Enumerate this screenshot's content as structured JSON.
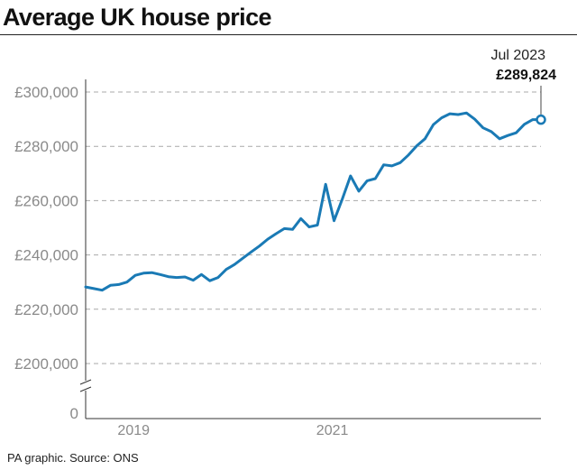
{
  "title": "Average UK house price",
  "source": "PA graphic. Source: ONS",
  "colors": {
    "line": "#1a7ab5",
    "grid": "#a9a9a9",
    "axis": "#333333",
    "tick_text": "#8a8a8a"
  },
  "chart_data": {
    "type": "line",
    "title": "Average UK house price",
    "xlabel": "",
    "ylabel": "",
    "grid": true,
    "y_axis_break": true,
    "xlim": [
      2018.917,
      2023.5
    ],
    "ylim": [
      0,
      300000
    ],
    "y_ticks": [
      0,
      200000,
      220000,
      240000,
      260000,
      280000,
      300000
    ],
    "y_tick_labels": [
      "0",
      "£200,000",
      "£220,000",
      "£240,000",
      "£260,000",
      "£280,000",
      "£300,000"
    ],
    "x_ticks": [
      2019.4,
      2021.4
    ],
    "x_tick_labels": [
      "2019",
      "2021"
    ],
    "series": [
      {
        "name": "Average UK house price",
        "x": [
          2018.917,
          2019.0,
          2019.083,
          2019.167,
          2019.25,
          2019.333,
          2019.417,
          2019.5,
          2019.583,
          2019.667,
          2019.75,
          2019.833,
          2019.917,
          2020.0,
          2020.083,
          2020.167,
          2020.25,
          2020.333,
          2020.417,
          2020.5,
          2020.583,
          2020.667,
          2020.75,
          2020.833,
          2020.917,
          2021.0,
          2021.083,
          2021.167,
          2021.25,
          2021.333,
          2021.417,
          2021.5,
          2021.583,
          2021.667,
          2021.75,
          2021.833,
          2021.917,
          2022.0,
          2022.083,
          2022.167,
          2022.25,
          2022.333,
          2022.417,
          2022.5,
          2022.583,
          2022.667,
          2022.75,
          2022.833,
          2022.917,
          2023.0,
          2023.083,
          2023.167,
          2023.25,
          2023.333,
          2023.417,
          2023.5
        ],
        "values": [
          228200,
          227600,
          227000,
          228800,
          229100,
          230000,
          232500,
          233300,
          233500,
          232800,
          232000,
          231700,
          231900,
          230700,
          232800,
          230500,
          231700,
          234700,
          236500,
          238800,
          241100,
          243300,
          245800,
          247800,
          249700,
          249400,
          253400,
          250300,
          251000,
          266000,
          252600,
          260500,
          269100,
          263500,
          267300,
          268100,
          273200,
          272800,
          274000,
          276800,
          280200,
          282800,
          288000,
          290500,
          292000,
          291700,
          292300,
          290000,
          286800,
          285400,
          282800,
          284000,
          285000,
          288100,
          289824,
          289824
        ]
      }
    ],
    "annotation": {
      "label": "Jul 2023",
      "value_label": "£289,824",
      "x": 2023.5,
      "y": 289824
    }
  }
}
